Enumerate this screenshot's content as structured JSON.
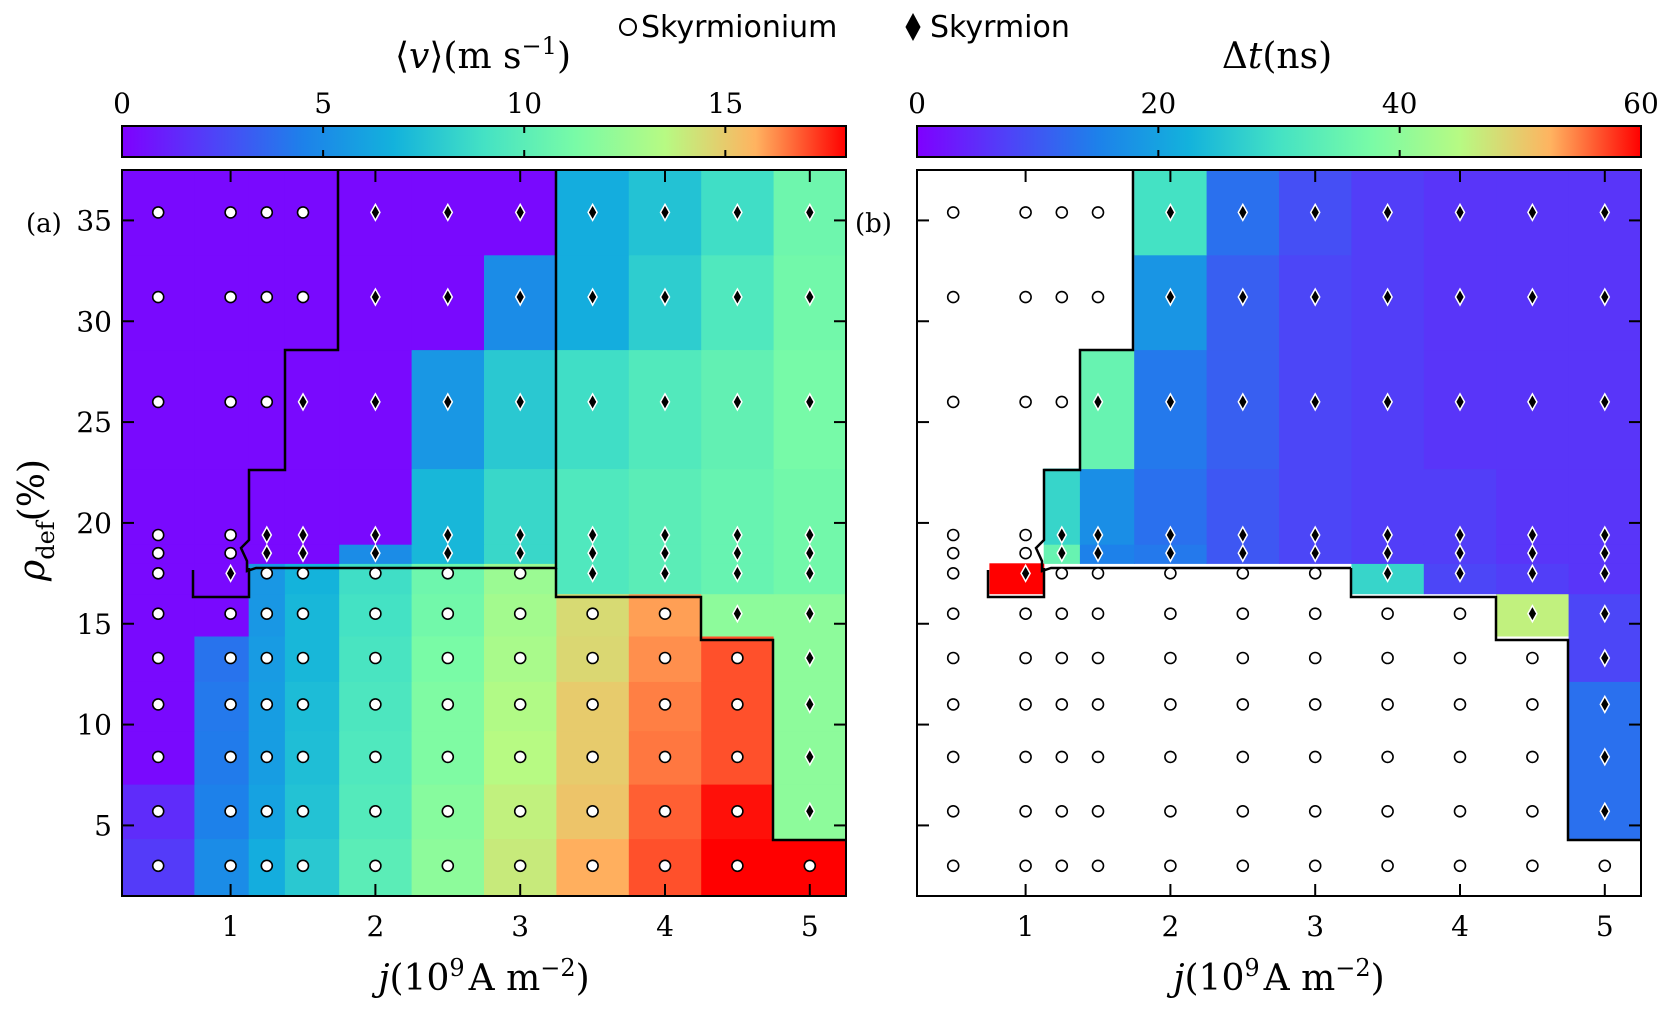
{
  "legend": {
    "skyrmionium_label": "Skyrmionium",
    "skyrmion_label": "Skyrmion"
  },
  "chart_data": [
    {
      "type": "heatmap",
      "panel_label": "(a)",
      "title_parts": [
        "⟨",
        "v",
        "⟩(m s",
        "−1",
        ")"
      ],
      "xlabel_parts": [
        "j",
        "(10",
        "9",
        "A m",
        "−2",
        ")"
      ],
      "ylabel_parts": [
        "ρ",
        "def",
        "(%)"
      ],
      "x": [
        0.5,
        1.0,
        1.25,
        1.5,
        2.0,
        2.5,
        3.0,
        3.5,
        4.0,
        4.5,
        5.0
      ],
      "y": [
        3.0,
        5.7,
        8.4,
        11.0,
        13.3,
        15.5,
        17.5,
        18.5,
        19.4,
        26.0,
        31.2,
        35.4
      ],
      "xlim": [
        0.25,
        5.25
      ],
      "ylim": [
        1.5,
        37.5
      ],
      "x_ticks": [
        1,
        2,
        3,
        4,
        5
      ],
      "y_ticks": [
        5,
        10,
        15,
        20,
        25,
        30,
        35
      ],
      "colorbar": {
        "min": 0,
        "max": 18,
        "ticks": [
          0,
          5,
          10,
          15
        ]
      },
      "values": [
        [
          2.0,
          5.0,
          6.5,
          7.8,
          10.0,
          12.0,
          14.0,
          15.8,
          17.0,
          18.0,
          18.0
        ],
        [
          1.5,
          4.5,
          6.0,
          7.5,
          9.7,
          11.8,
          13.8,
          15.2,
          16.8,
          17.8,
          12.0
        ],
        [
          0.3,
          4.3,
          5.8,
          7.3,
          9.5,
          11.5,
          13.5,
          15.0,
          16.5,
          17.0,
          12.0
        ],
        [
          0.3,
          4.2,
          5.8,
          7.2,
          9.4,
          11.5,
          13.3,
          15.0,
          16.4,
          17.0,
          12.0
        ],
        [
          0.3,
          4.0,
          5.7,
          7.0,
          9.2,
          11.3,
          13.0,
          14.6,
          16.2,
          17.0,
          12.0
        ],
        [
          0.3,
          0.3,
          5.5,
          7.0,
          9.0,
          11.0,
          12.8,
          14.5,
          16.0,
          12.0,
          12.0
        ],
        [
          0.3,
          0.3,
          5.5,
          6.8,
          8.8,
          10.8,
          12.5,
          9.5,
          10.0,
          10.5,
          11.0
        ],
        [
          0.3,
          0.3,
          0.3,
          0.3,
          5.0,
          7.0,
          8.5,
          9.5,
          10.0,
          10.5,
          11.0
        ],
        [
          0.3,
          0.3,
          0.3,
          0.3,
          0.3,
          7.0,
          8.5,
          9.5,
          10.0,
          10.5,
          11.0
        ],
        [
          0.3,
          0.3,
          0.3,
          0.3,
          0.3,
          5.5,
          7.8,
          8.8,
          9.6,
          10.3,
          11.2
        ],
        [
          0.3,
          0.3,
          0.3,
          0.3,
          0.3,
          0.3,
          5.0,
          6.5,
          8.0,
          9.5,
          11.0
        ],
        [
          0.3,
          0.3,
          0.3,
          0.3,
          0.3,
          0.3,
          0.3,
          6.5,
          7.5,
          8.8,
          10.8
        ]
      ],
      "markers": [
        [
          "o",
          "o",
          "o",
          "o",
          "o",
          "o",
          "o",
          "o",
          "o",
          "o",
          "o"
        ],
        [
          "o",
          "o",
          "o",
          "o",
          "o",
          "o",
          "o",
          "o",
          "o",
          "o",
          "d"
        ],
        [
          "o",
          "o",
          "o",
          "o",
          "o",
          "o",
          "o",
          "o",
          "o",
          "o",
          "d"
        ],
        [
          "o",
          "o",
          "o",
          "o",
          "o",
          "o",
          "o",
          "o",
          "o",
          "o",
          "d"
        ],
        [
          "o",
          "o",
          "o",
          "o",
          "o",
          "o",
          "o",
          "o",
          "o",
          "o",
          "d"
        ],
        [
          "o",
          "o",
          "o",
          "o",
          "o",
          "o",
          "o",
          "o",
          "o",
          "d",
          "d"
        ],
        [
          "o",
          "d",
          "o",
          "o",
          "o",
          "o",
          "o",
          "d",
          "d",
          "d",
          "d"
        ],
        [
          "o",
          "o",
          "d",
          "d",
          "d",
          "d",
          "d",
          "d",
          "d",
          "d",
          "d"
        ],
        [
          "o",
          "o",
          "d",
          "d",
          "d",
          "d",
          "d",
          "d",
          "d",
          "d",
          "d"
        ],
        [
          "o",
          "o",
          "o",
          "d",
          "d",
          "d",
          "d",
          "d",
          "d",
          "d",
          "d"
        ],
        [
          "o",
          "o",
          "o",
          "o",
          "d",
          "d",
          "d",
          "d",
          "d",
          "d",
          "d"
        ],
        [
          "o",
          "o",
          "o",
          "o",
          "d",
          "d",
          "d",
          "d",
          "d",
          "d",
          "d"
        ]
      ]
    },
    {
      "type": "heatmap",
      "panel_label": "(b)",
      "title_parts": [
        "Δ",
        "t",
        "(ns)"
      ],
      "xlabel_parts": [
        "j",
        "(10",
        "9",
        "A m",
        "−2",
        ")"
      ],
      "x": [
        0.5,
        1.0,
        1.25,
        1.5,
        2.0,
        2.5,
        3.0,
        3.5,
        4.0,
        4.5,
        5.0
      ],
      "y": [
        3.0,
        5.7,
        8.4,
        11.0,
        13.3,
        15.5,
        17.5,
        18.5,
        19.4,
        26.0,
        31.2,
        35.4
      ],
      "xlim": [
        0.25,
        5.25
      ],
      "ylim": [
        1.5,
        37.5
      ],
      "x_ticks": [
        1,
        2,
        3,
        4,
        5
      ],
      "y_ticks": [
        5,
        10,
        15,
        20,
        25,
        30,
        35
      ],
      "colorbar": {
        "min": 0,
        "max": 60,
        "ticks": [
          0,
          20,
          40,
          60
        ]
      },
      "values": [
        [
          null,
          null,
          null,
          null,
          null,
          null,
          null,
          null,
          null,
          null,
          null
        ],
        [
          null,
          null,
          null,
          null,
          null,
          null,
          null,
          null,
          null,
          null,
          13.0
        ],
        [
          null,
          null,
          null,
          null,
          null,
          null,
          null,
          null,
          null,
          null,
          13.0
        ],
        [
          null,
          null,
          null,
          null,
          null,
          null,
          null,
          null,
          null,
          null,
          13.0
        ],
        [
          null,
          null,
          null,
          null,
          null,
          null,
          null,
          null,
          null,
          null,
          8.0
        ],
        [
          null,
          null,
          null,
          null,
          null,
          null,
          null,
          null,
          null,
          46.0,
          8.0
        ],
        [
          null,
          60.0,
          null,
          null,
          null,
          null,
          null,
          28.0,
          8.0,
          7.0,
          6.0
        ],
        [
          null,
          null,
          35.0,
          15.0,
          14.0,
          10.0,
          8.0,
          7.0,
          7.0,
          6.0,
          6.0
        ],
        [
          null,
          null,
          28.0,
          17.0,
          13.0,
          10.0,
          8.0,
          7.0,
          7.0,
          6.0,
          6.0
        ],
        [
          null,
          null,
          null,
          35.0,
          14.0,
          11.0,
          8.0,
          7.0,
          6.0,
          6.0,
          6.0
        ],
        [
          null,
          null,
          null,
          null,
          18.0,
          11.0,
          8.0,
          7.0,
          6.0,
          6.0,
          6.0
        ],
        [
          null,
          null,
          null,
          null,
          30.0,
          13.0,
          9.0,
          7.0,
          6.0,
          6.0,
          6.0
        ]
      ],
      "markers": [
        [
          "o",
          "o",
          "o",
          "o",
          "o",
          "o",
          "o",
          "o",
          "o",
          "o",
          "o"
        ],
        [
          "o",
          "o",
          "o",
          "o",
          "o",
          "o",
          "o",
          "o",
          "o",
          "o",
          "d"
        ],
        [
          "o",
          "o",
          "o",
          "o",
          "o",
          "o",
          "o",
          "o",
          "o",
          "o",
          "d"
        ],
        [
          "o",
          "o",
          "o",
          "o",
          "o",
          "o",
          "o",
          "o",
          "o",
          "o",
          "d"
        ],
        [
          "o",
          "o",
          "o",
          "o",
          "o",
          "o",
          "o",
          "o",
          "o",
          "o",
          "d"
        ],
        [
          "o",
          "o",
          "o",
          "o",
          "o",
          "o",
          "o",
          "o",
          "o",
          "d",
          "d"
        ],
        [
          "o",
          "d",
          "o",
          "o",
          "o",
          "o",
          "o",
          "d",
          "d",
          "d",
          "d"
        ],
        [
          "o",
          "o",
          "d",
          "d",
          "d",
          "d",
          "d",
          "d",
          "d",
          "d",
          "d"
        ],
        [
          "o",
          "o",
          "d",
          "d",
          "d",
          "d",
          "d",
          "d",
          "d",
          "d",
          "d"
        ],
        [
          "o",
          "o",
          "o",
          "d",
          "d",
          "d",
          "d",
          "d",
          "d",
          "d",
          "d"
        ],
        [
          "o",
          "o",
          "o",
          "o",
          "d",
          "d",
          "d",
          "d",
          "d",
          "d",
          "d"
        ],
        [
          "o",
          "o",
          "o",
          "o",
          "d",
          "d",
          "d",
          "d",
          "d",
          "d",
          "d"
        ]
      ]
    }
  ]
}
